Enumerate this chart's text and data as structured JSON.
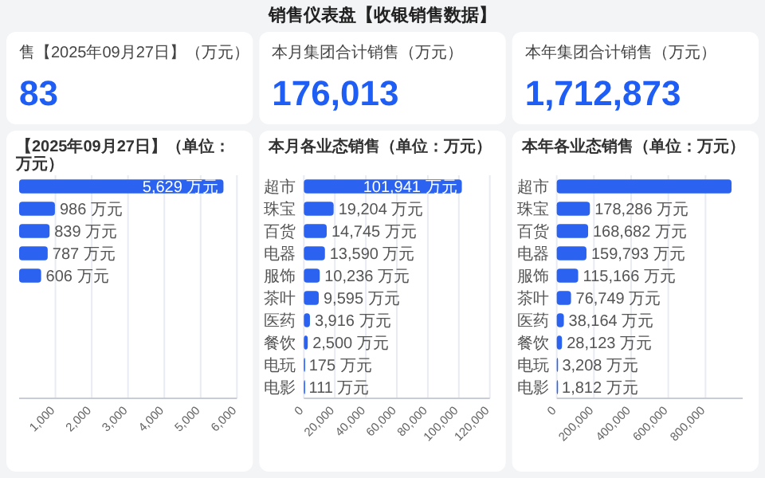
{
  "chart_data": [
    {
      "type": "other",
      "title": "销售仪表盘【收银销售数据】"
    },
    {
      "type": "other",
      "title": "售【2025年09月27日】（万元）",
      "annotations": [
        "83"
      ]
    },
    {
      "type": "other",
      "title": "本月集团合计销售（万元）",
      "annotations": [
        "176,013"
      ]
    },
    {
      "type": "other",
      "title": "本年集团合计销售（万元）",
      "annotations": [
        "1,712,873"
      ]
    },
    {
      "type": "bar",
      "orientation": "horizontal",
      "title": "【2025年09月27日】（单位：万元）",
      "color": "#2b63f0",
      "grid": "x",
      "categories": [
        null,
        null,
        null,
        null,
        null,
        null,
        null,
        null,
        null,
        null
      ],
      "values": [
        5629,
        986,
        839,
        787,
        606,
        null,
        null,
        null,
        null,
        null
      ],
      "value_labels": [
        "5,629 万元",
        "986 万元",
        "839 万元",
        "787 万元",
        "606 万元",
        null,
        null,
        null,
        null,
        null
      ],
      "xlim": [
        0,
        6000
      ],
      "xticks": [
        {
          "value": 1000,
          "label": "1,000"
        },
        {
          "value": 2000,
          "label": "2,000"
        },
        {
          "value": 3000,
          "label": "3,000"
        },
        {
          "value": 4000,
          "label": "4,000"
        },
        {
          "value": 5000,
          "label": "5,000"
        },
        {
          "value": 6000,
          "label": "6,000"
        }
      ]
    },
    {
      "type": "bar",
      "orientation": "horizontal",
      "title": "本月各业态销售（单位：万元）",
      "color": "#2b63f0",
      "grid": "x",
      "categories": [
        "超市",
        "珠宝",
        "百货",
        "电器",
        "服饰",
        "茶叶",
        "医药",
        "餐饮",
        "电玩",
        "电影"
      ],
      "values": [
        101941,
        19204,
        14745,
        13590,
        10236,
        9595,
        3916,
        2500,
        175,
        111
      ],
      "value_labels": [
        "101,941 万元",
        "19,204 万元",
        "14,745 万元",
        "13,590 万元",
        "10,236 万元",
        "9,595 万元",
        "3,916 万元",
        "2,500 万元",
        "175 万元",
        "111 万元"
      ],
      "xlim": [
        0,
        120000
      ],
      "xticks": [
        0,
        {
          "value": 20000,
          "label": "20,000"
        },
        {
          "value": 40000,
          "label": "40,000"
        },
        {
          "value": 60000,
          "label": "60,000"
        },
        {
          "value": 80000,
          "label": "80,000"
        },
        {
          "value": 100000,
          "label": "100,000"
        },
        {
          "value": 120000,
          "label": "120,000"
        }
      ]
    },
    {
      "type": "bar",
      "orientation": "horizontal",
      "title": "本年各业态销售（单位：万元）",
      "color": "#2b63f0",
      "grid": "x",
      "categories": [
        "超市",
        "珠宝",
        "百货",
        "电器",
        "服饰",
        "茶叶",
        "医药",
        "餐饮",
        "电玩",
        "电影"
      ],
      "values": [
        940000,
        178286,
        168682,
        159793,
        115166,
        76749,
        38164,
        28123,
        3208,
        1812
      ],
      "value_labels": [
        null,
        "178,286 万元",
        "168,682 万元",
        "159,793 万元",
        "115,166 万元",
        "76,749 万元",
        "38,164 万元",
        "28,123 万元",
        "3,208 万元",
        "1,812 万元"
      ],
      "xlim": [
        0,
        1000000
      ],
      "xticks": [
        0,
        {
          "value": 200000,
          "label": "200,000"
        },
        {
          "value": 400000,
          "label": "400,000"
        },
        {
          "value": 600000,
          "label": "600,000"
        },
        {
          "value": 800000,
          "label": "800,000"
        }
      ]
    }
  ]
}
